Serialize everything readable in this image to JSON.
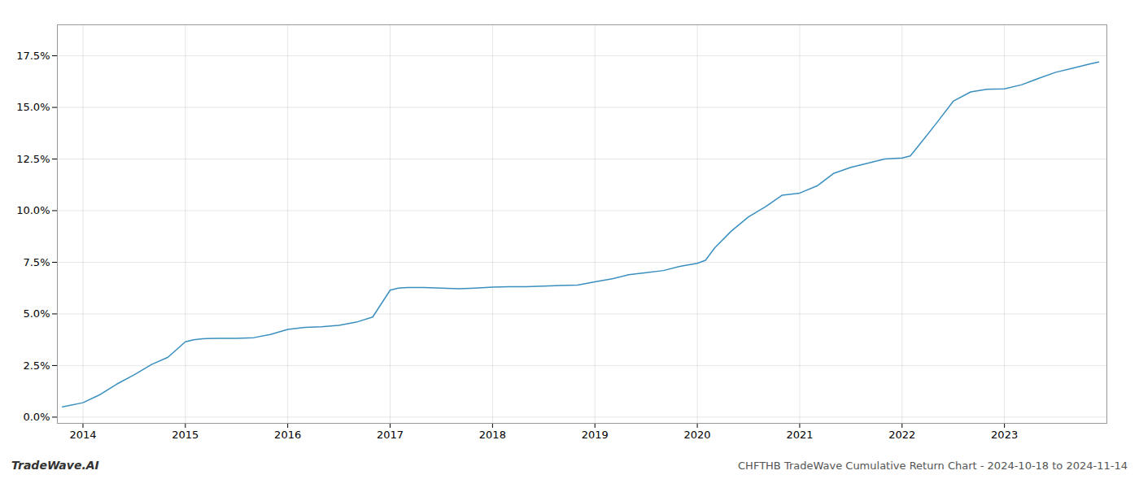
{
  "chart_data": {
    "type": "line",
    "title": "CHFTHB TradeWave Cumulative Return Chart - 2024-10-18 to 2024-11-14",
    "annotations": [
      "TradeWave.AI"
    ],
    "color": "#3a8fbf",
    "grid": true,
    "x": [
      2013.8,
      2014.0,
      2014.17,
      2014.33,
      2014.5,
      2014.67,
      2014.83,
      2015.0,
      2015.08,
      2015.17,
      2015.33,
      2015.5,
      2015.67,
      2015.83,
      2016.0,
      2016.17,
      2016.33,
      2016.5,
      2016.67,
      2016.83,
      2017.0,
      2017.08,
      2017.17,
      2017.33,
      2017.5,
      2017.67,
      2017.83,
      2018.0,
      2018.17,
      2018.33,
      2018.5,
      2018.67,
      2018.83,
      2019.0,
      2019.17,
      2019.33,
      2019.5,
      2019.67,
      2019.83,
      2020.0,
      2020.08,
      2020.17,
      2020.33,
      2020.5,
      2020.67,
      2020.83,
      2021.0,
      2021.17,
      2021.33,
      2021.5,
      2021.67,
      2021.83,
      2022.0,
      2022.08,
      2022.17,
      2022.33,
      2022.5,
      2022.67,
      2022.83,
      2023.0,
      2023.17,
      2023.33,
      2023.5,
      2023.67,
      2023.83,
      2023.92
    ],
    "values": [
      0.5,
      0.7,
      1.1,
      1.6,
      2.05,
      2.55,
      2.9,
      3.65,
      3.75,
      3.8,
      3.82,
      3.82,
      3.85,
      4.0,
      4.25,
      4.35,
      4.38,
      4.45,
      4.6,
      4.85,
      6.15,
      6.25,
      6.28,
      6.28,
      6.25,
      6.22,
      6.25,
      6.3,
      6.32,
      6.32,
      6.35,
      6.38,
      6.4,
      6.55,
      6.7,
      6.9,
      7.0,
      7.1,
      7.3,
      7.45,
      7.6,
      8.2,
      9.0,
      9.7,
      10.2,
      10.75,
      10.85,
      11.2,
      11.8,
      12.1,
      12.3,
      12.5,
      12.55,
      12.65,
      13.2,
      14.2,
      15.3,
      15.75,
      15.88,
      15.9,
      16.1,
      16.4,
      16.7,
      16.9,
      17.1,
      17.2
    ],
    "xlim": [
      2013.75,
      2024.0
    ],
    "xticks": [
      2014,
      2015,
      2016,
      2017,
      2018,
      2019,
      2020,
      2021,
      2022,
      2023
    ],
    "ylim": [
      -0.3,
      19.0
    ],
    "yticks": [
      {
        "value": 0.0,
        "label": "0.0%"
      },
      {
        "value": 2.5,
        "label": "2.5%"
      },
      {
        "value": 5.0,
        "label": "5.0%"
      },
      {
        "value": 7.5,
        "label": "7.5%"
      },
      {
        "value": 10.0,
        "label": "10.0%"
      },
      {
        "value": 12.5,
        "label": "12.5%"
      },
      {
        "value": 15.0,
        "label": "15.0%"
      },
      {
        "value": 17.5,
        "label": "17.5%"
      }
    ]
  }
}
